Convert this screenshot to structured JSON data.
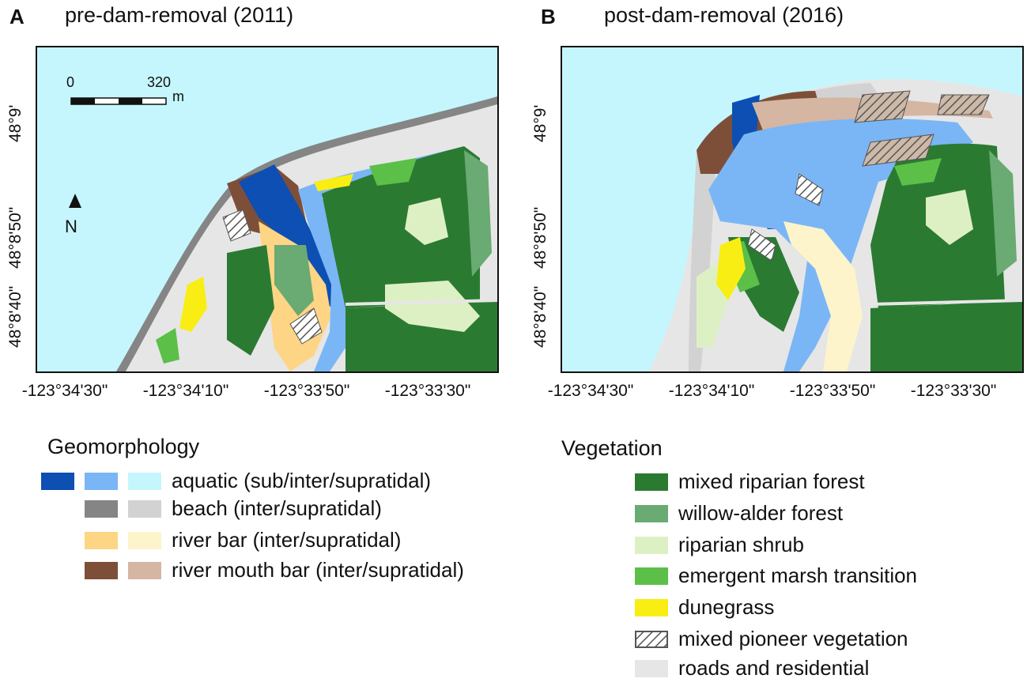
{
  "panels": [
    {
      "letter": "A",
      "title": "pre-dam-removal (2011)"
    },
    {
      "letter": "B",
      "title": "post-dam-removal (2016)"
    }
  ],
  "x_ticks": [
    "-123°34'30\"",
    "-123°34'10\"",
    "-123°33'50\"",
    "-123°33'30\""
  ],
  "y_ticks": [
    "48°9'",
    "48°8'50\"",
    "48°8'40\""
  ],
  "scale_bar": {
    "start": "0",
    "end": "320",
    "unit": "m"
  },
  "north_arrow": {
    "label": "N"
  },
  "legend_geomorphology": {
    "title": "Geomorphology",
    "items": [
      {
        "label": "aquatic (sub/inter/supratidal)",
        "colors": [
          "#0d4fb3",
          "#7ab6f5",
          "#c5f6fd"
        ]
      },
      {
        "label": "beach (inter/supratidal)",
        "colors": [
          "#858585",
          "#d2d2d2"
        ]
      },
      {
        "label": "river bar (inter/supratidal)",
        "colors": [
          "#fdd584",
          "#fdf4cc"
        ]
      },
      {
        "label": "river mouth bar (inter/supratidal)",
        "colors": [
          "#7e4f38",
          "#d4b6a3"
        ]
      }
    ]
  },
  "legend_vegetation": {
    "title": "Vegetation",
    "items": [
      {
        "label": "mixed riparian forest",
        "color": "#2b7a32"
      },
      {
        "label": "willow-alder forest",
        "color": "#6aaa73"
      },
      {
        "label": "riparian shrub",
        "color": "#ddf0c4"
      },
      {
        "label": "emergent marsh transition",
        "color": "#5cbf48"
      },
      {
        "label": "dunegrass",
        "color": "#f8ee14"
      },
      {
        "label": "mixed pioneer vegetation",
        "color": "hatched"
      },
      {
        "label": "roads and residential",
        "color": "#e6e6e6"
      }
    ]
  }
}
